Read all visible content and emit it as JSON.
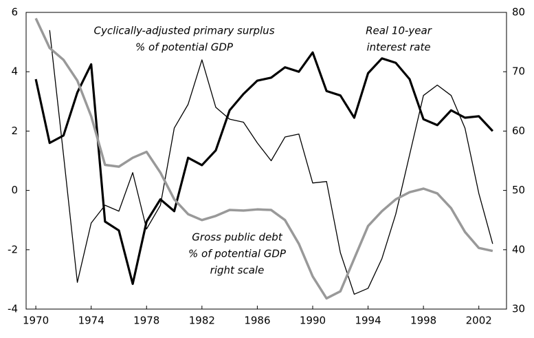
{
  "chart_data": {
    "type": "line",
    "annotations": [
      {
        "lines": [
          "Cyclically-adjusted primary surplus",
          "% of potential GDP"
        ]
      },
      {
        "lines": [
          "Real 10-year",
          "interest rate"
        ]
      },
      {
        "lines": [
          "Gross public debt",
          "% of potential GDP",
          "right scale"
        ]
      }
    ],
    "x": [
      1970,
      1971,
      1972,
      1973,
      1974,
      1975,
      1976,
      1977,
      1978,
      1979,
      1980,
      1981,
      1982,
      1983,
      1984,
      1985,
      1986,
      1987,
      1988,
      1989,
      1990,
      1991,
      1992,
      1993,
      1994,
      1995,
      1996,
      1997,
      1998,
      1999,
      2000,
      2001,
      2002,
      2003
    ],
    "series": [
      {
        "name": "Cyclically-adjusted primary surplus",
        "color": "#000000",
        "width": 1.3,
        "values": [
          null,
          5.4,
          1.2,
          -3.1,
          -1.1,
          -0.5,
          -0.7,
          0.6,
          -1.3,
          -0.5,
          2.1,
          2.9,
          4.4,
          2.8,
          2.4,
          2.3,
          1.6,
          1.0,
          1.8,
          1.9,
          0.25,
          0.3,
          -2.1,
          -3.5,
          -3.3,
          -2.3,
          -0.8,
          1.2,
          3.2,
          3.55,
          3.2,
          2.1,
          -0.1,
          -1.8
        ]
      },
      {
        "name": "Real 10-year interest rate",
        "color": "#000000",
        "width": 3.2,
        "values": [
          3.75,
          1.6,
          1.85,
          3.3,
          4.25,
          -1.05,
          -1.35,
          -3.15,
          -1.05,
          -0.3,
          -0.7,
          1.1,
          0.85,
          1.35,
          2.7,
          3.25,
          3.7,
          3.8,
          4.15,
          4.0,
          4.65,
          3.35,
          3.2,
          2.45,
          3.95,
          4.45,
          4.3,
          3.75,
          2.4,
          2.2,
          2.7,
          2.45,
          2.5,
          2.0
        ]
      },
      {
        "name": "Gross public debt",
        "color": "#999999",
        "width": 3.5,
        "axis": "y2",
        "values": [
          79,
          74,
          72,
          68.5,
          62.5,
          54.3,
          54,
          55.5,
          56.5,
          53,
          48.5,
          46,
          45,
          45.7,
          46.7,
          46.6,
          46.8,
          46.7,
          45,
          41,
          35.5,
          31.8,
          33,
          38.5,
          44,
          46.5,
          48.5,
          49.7,
          50.3,
          49.5,
          47,
          43,
          40.3,
          39.8
        ]
      }
    ],
    "xlim": [
      1969.3,
      2004
    ],
    "xticks": [
      1970,
      1974,
      1978,
      1982,
      1986,
      1990,
      1994,
      1998,
      2002
    ],
    "ylim": [
      -4,
      6
    ],
    "yticks": [
      -4,
      -2,
      0,
      2,
      4,
      6
    ],
    "y2lim": [
      30,
      80
    ],
    "y2ticks": [
      30,
      40,
      50,
      60,
      70,
      80
    ]
  }
}
